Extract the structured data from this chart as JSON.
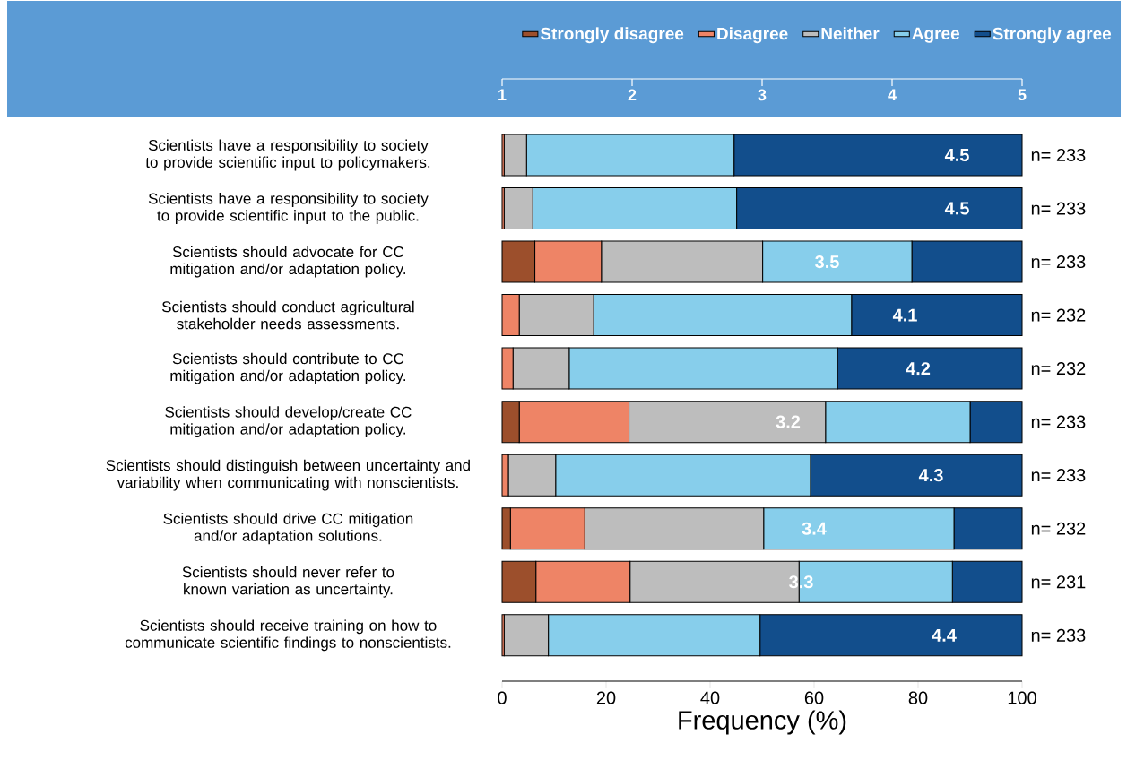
{
  "chart_data": {
    "type": "bar",
    "orientation": "horizontal",
    "stacked": true,
    "xlabel": "Frequency (%)",
    "categories": [
      "Scientists have a responsibility to society to provide scientific input to policymakers.",
      "Scientists have a responsibility to society to provide scientific input to the public.",
      "Scientists should advocate for CC mitigation and/or adaptation policy.",
      "Scientists should conduct agricultural stakeholder needs assessments.",
      "Scientists should contribute to CC mitigation and/or adaptation policy.",
      "Scientists should develop/create CC mitigation and/or adaptation policy.",
      "Scientists should distinguish between uncertainty and variability when communicating with nonscientists.",
      "Scientists should drive CC mitigation and/or adaptation solutions.",
      "Scientists should never refer to known variation as uncertainty.",
      "Scientists should receive training on how to communicate scientific findings to nonscientists."
    ],
    "series": [
      {
        "name": "Strongly disagree",
        "color": "#9c4f2c",
        "values": [
          0,
          0,
          6.3,
          0,
          0,
          3.3,
          0,
          1.6,
          6.5,
          0
        ]
      },
      {
        "name": "Disagree",
        "color": "#ee8466",
        "values": [
          0.4,
          0.4,
          12.8,
          3.3,
          2.1,
          21.1,
          1.2,
          14.3,
          18.1,
          0.4
        ]
      },
      {
        "name": "Neither",
        "color": "#bdbdbd",
        "values": [
          4.3,
          5.5,
          31.0,
          14.3,
          10.8,
          37.8,
          9.1,
          34.4,
          32.5,
          8.5
        ]
      },
      {
        "name": "Agree",
        "color": "#87ceeb",
        "values": [
          39.9,
          39.2,
          28.7,
          49.6,
          51.6,
          27.8,
          49.0,
          36.6,
          29.5,
          40.7
        ]
      },
      {
        "name": "Strongly agree",
        "color": "#124e8c",
        "values": [
          55.4,
          54.9,
          21.2,
          32.8,
          35.5,
          10.0,
          40.7,
          13.1,
          13.4,
          50.4
        ]
      }
    ],
    "xlim": [
      0,
      100
    ],
    "xticks": [
      0,
      20,
      40,
      60,
      80,
      100
    ],
    "x2lim": [
      1,
      5
    ],
    "x2ticks": [
      1,
      2,
      3,
      4,
      5
    ],
    "legend": "top",
    "grid": false,
    "annotations": [
      {
        "text": "4.5",
        "x": 87.5,
        "y": "Scientists have a responsibility to society to provide scientific input to policymakers."
      },
      {
        "text": "4.5",
        "x": 87.5,
        "y": "Scientists have a responsibility to society to provide scientific input to the public."
      },
      {
        "text": "3.5",
        "x": 62.5,
        "y": "Scientists should advocate for CC mitigation and/or adaptation policy."
      },
      {
        "text": "4.1",
        "x": 77.5,
        "y": "Scientists should conduct agricultural stakeholder needs assessments."
      },
      {
        "text": "4.2",
        "x": 80,
        "y": "Scientists should contribute to CC mitigation and/or adaptation policy."
      },
      {
        "text": "3.2",
        "x": 55,
        "y": "Scientists should develop/create CC mitigation and/or adaptation policy."
      },
      {
        "text": "4.3",
        "x": 82.5,
        "y": "Scientists should distinguish between uncertainty and variability when communicating with nonscientists."
      },
      {
        "text": "3.4",
        "x": 60,
        "y": "Scientists should drive CC mitigation and/or adaptation solutions."
      },
      {
        "text": "3.3",
        "x": 57.5,
        "y": "Scientists should never refer to known variation as uncertainty."
      },
      {
        "text": "4.4",
        "x": 85,
        "y": "Scientists should receive training on how to communicate scientific findings to nonscientists."
      },
      "n= 233",
      "n= 233",
      "n= 233",
      "n= 232",
      "n= 232",
      "n= 233",
      "n= 233",
      "n= 232",
      "n= 231",
      "n= 233"
    ]
  }
}
